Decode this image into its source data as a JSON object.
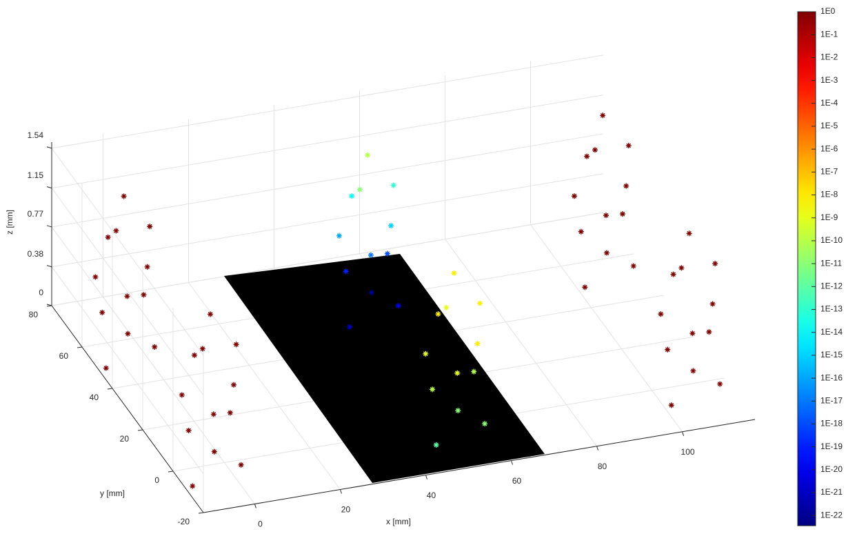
{
  "chart_data": {
    "type": "scatter3d",
    "xlabel": "x [mm]",
    "ylabel": "y [mm]",
    "zlabel": "z [mm]",
    "xlim": [
      -12,
      117
    ],
    "ylim": [
      -20,
      80
    ],
    "zlim": [
      0,
      1.6
    ],
    "xticks": [
      0,
      20,
      40,
      60,
      80,
      100
    ],
    "yticks": [
      -20,
      0,
      20,
      40,
      60,
      80
    ],
    "zticks": [
      0,
      0.38,
      0.77,
      1.15,
      1.54
    ],
    "grid": true,
    "marker": "*",
    "colormap": "jet",
    "plane_color": "#000000",
    "clim": [
      3.6e-23,
      1
    ],
    "clog": true,
    "cticks": [
      {
        "value": 1,
        "label": "1E0"
      },
      {
        "value": 0.1,
        "label": "1E-1"
      },
      {
        "value": 0.01,
        "label": "1E-2"
      },
      {
        "value": 0.001,
        "label": "1E-3"
      },
      {
        "value": 0.0001,
        "label": "1E-4"
      },
      {
        "value": 1e-05,
        "label": "1E-5"
      },
      {
        "value": 1e-06,
        "label": "1E-6"
      },
      {
        "value": 1e-07,
        "label": "1E-7"
      },
      {
        "value": 1e-08,
        "label": "1E-8"
      },
      {
        "value": 1e-09,
        "label": "1E-9"
      },
      {
        "value": 1e-10,
        "label": "1E-10"
      },
      {
        "value": 1e-11,
        "label": "1E-11"
      },
      {
        "value": 1e-12,
        "label": "1E-12"
      },
      {
        "value": 1e-13,
        "label": "1E-13"
      },
      {
        "value": 1e-14,
        "label": "1E-14"
      },
      {
        "value": 1e-15,
        "label": "1E-15"
      },
      {
        "value": 1e-16,
        "label": "1E-16"
      },
      {
        "value": 1e-17,
        "label": "1E-17"
      },
      {
        "value": 1e-18,
        "label": "1E-18"
      },
      {
        "value": 1e-19,
        "label": "1E-19"
      },
      {
        "value": 1e-20,
        "label": "1E-20"
      },
      {
        "value": 1e-21,
        "label": "1E-21"
      },
      {
        "value": 1e-22,
        "label": "1E-22"
      }
    ],
    "x": [
      -11,
      0,
      -8,
      1,
      -5,
      -11,
      -1,
      -7,
      1,
      -9,
      -4,
      -2,
      -11,
      0,
      -8,
      1,
      -5,
      -11,
      -1,
      -7,
      1,
      -9,
      -4,
      -2,
      46,
      57,
      49,
      58,
      52,
      46,
      56,
      50,
      58,
      48,
      53,
      55,
      46,
      57,
      49,
      58,
      52,
      46,
      56,
      50,
      58,
      48,
      53,
      55,
      101,
      112,
      104,
      113,
      107,
      101,
      111,
      105,
      113,
      103,
      108,
      110,
      101,
      112,
      104,
      113,
      107,
      101,
      111,
      105,
      113,
      103,
      108,
      110
    ],
    "y": [
      47,
      46,
      58,
      56,
      50,
      54,
      48,
      57,
      52,
      46,
      55,
      58,
      -10,
      -11,
      1,
      -1,
      -7,
      -3,
      -9,
      0,
      -5,
      -11,
      -2,
      1,
      47,
      46,
      58,
      56,
      50,
      54,
      48,
      57,
      52,
      46,
      55,
      58,
      -10,
      -11,
      1,
      -1,
      -7,
      -3,
      -9,
      0,
      -5,
      -11,
      -2,
      1,
      47,
      46,
      58,
      56,
      50,
      54,
      48,
      57,
      52,
      46,
      55,
      58,
      -10,
      -11,
      1,
      -1,
      -7,
      -3,
      -9,
      0,
      -5,
      -11,
      -2,
      1
    ],
    "z": [
      0.05,
      0.2,
      0.35,
      0.5,
      0.65,
      0.8,
      0.95,
      1.1,
      1.25,
      1.4,
      1.52,
      0.1,
      0.05,
      0.2,
      0.35,
      0.5,
      0.65,
      0.8,
      0.95,
      1.1,
      1.25,
      1.4,
      1.52,
      0.1,
      0.05,
      0.2,
      0.35,
      0.5,
      0.65,
      0.8,
      0.95,
      1.1,
      1.25,
      1.4,
      1.52,
      0.1,
      0.05,
      0.2,
      0.35,
      0.5,
      0.65,
      0.8,
      0.95,
      1.1,
      1.25,
      1.4,
      1.52,
      0.1,
      0.05,
      0.2,
      0.35,
      0.5,
      0.65,
      0.8,
      0.95,
      1.1,
      1.25,
      1.4,
      1.52,
      0.1,
      0.05,
      0.2,
      0.35,
      0.5,
      0.65,
      0.8,
      0.95,
      1.1,
      1.25,
      1.4,
      1.52,
      0.1
    ],
    "c": [
      1,
      1,
      1,
      1,
      1,
      1,
      1,
      1,
      1,
      1,
      1,
      1,
      1,
      1,
      1,
      1,
      1,
      1,
      1,
      1,
      1,
      1,
      1,
      1,
      1e-21,
      1e-20,
      1e-19,
      1e-18,
      1e-17,
      1e-16,
      1e-15,
      1e-14,
      1e-13,
      1e-11,
      1e-10,
      1e-22,
      1e-12,
      1e-11,
      1e-10,
      1e-10,
      1e-09,
      1e-09,
      1e-08,
      1e-08,
      1e-08,
      1e-09,
      1e-08,
      1e-11,
      1,
      1,
      1,
      1,
      1,
      1,
      1,
      1,
      1,
      1,
      1,
      1,
      1,
      1,
      1,
      1,
      1,
      1,
      1,
      1,
      1,
      1,
      1,
      1
    ]
  }
}
